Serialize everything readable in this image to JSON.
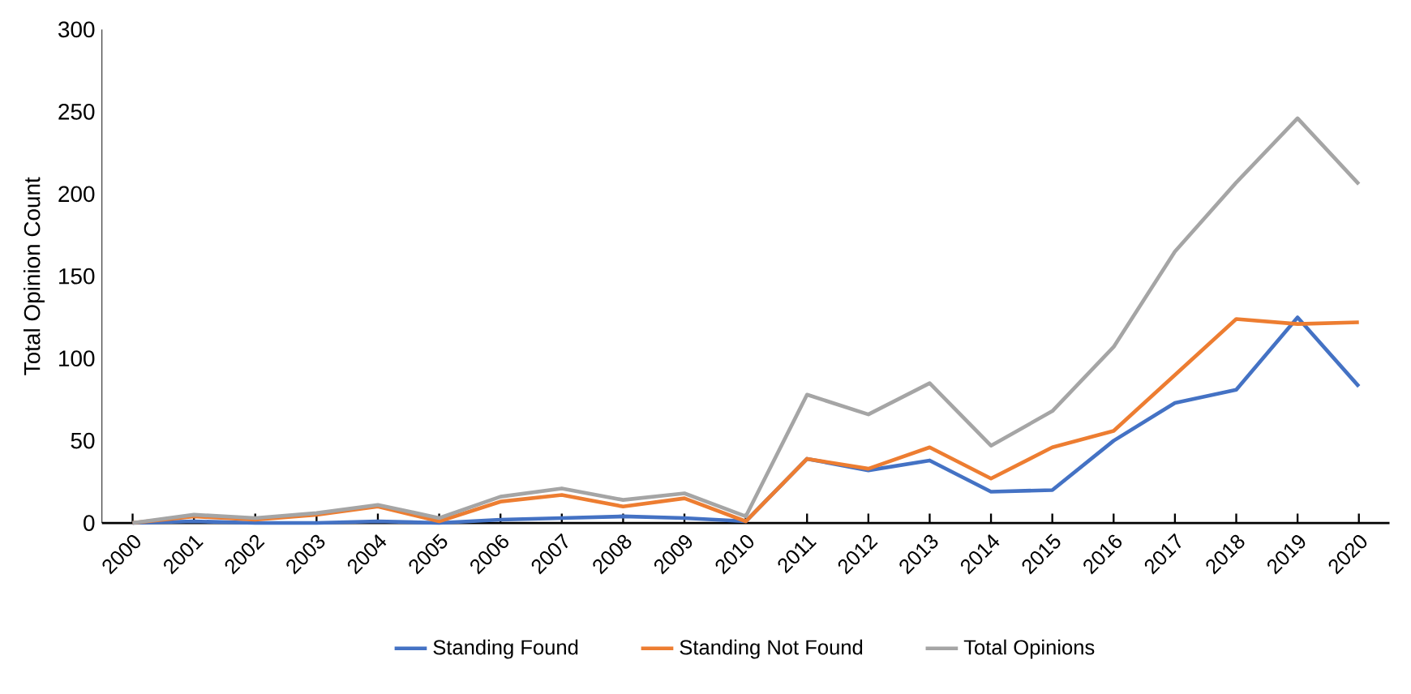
{
  "chart_data": {
    "type": "line",
    "ylabel": "Total Opinion Count",
    "categories": [
      "2000",
      "2001",
      "2002",
      "2003",
      "2004",
      "2005",
      "2006",
      "2007",
      "2008",
      "2009",
      "2010",
      "2011",
      "2012",
      "2013",
      "2014",
      "2015",
      "2016",
      "2017",
      "2018",
      "2019",
      "2020"
    ],
    "series": [
      {
        "name": "Standing Found",
        "color": "#4472c4",
        "values": [
          0,
          1,
          0,
          0,
          1,
          0,
          2,
          3,
          4,
          3,
          1,
          39,
          32,
          38,
          19,
          20,
          50,
          73,
          81,
          125,
          83
        ]
      },
      {
        "name": "Standing Not Found",
        "color": "#ed7d31",
        "values": [
          0,
          4,
          2,
          5,
          10,
          1,
          13,
          17,
          10,
          15,
          1,
          39,
          33,
          46,
          27,
          46,
          56,
          90,
          124,
          121,
          122
        ]
      },
      {
        "name": "Total Opinions",
        "color": "#a5a5a5",
        "values": [
          0,
          5,
          3,
          6,
          11,
          3,
          16,
          21,
          14,
          18,
          4,
          78,
          66,
          85,
          47,
          68,
          107,
          165,
          207,
          246,
          206
        ]
      }
    ],
    "ylim": [
      0,
      300
    ],
    "yticks": [
      0,
      50,
      100,
      150,
      200,
      250,
      300
    ],
    "grid": false,
    "legend": "bottom",
    "marker": "none",
    "line_style": "solid"
  }
}
